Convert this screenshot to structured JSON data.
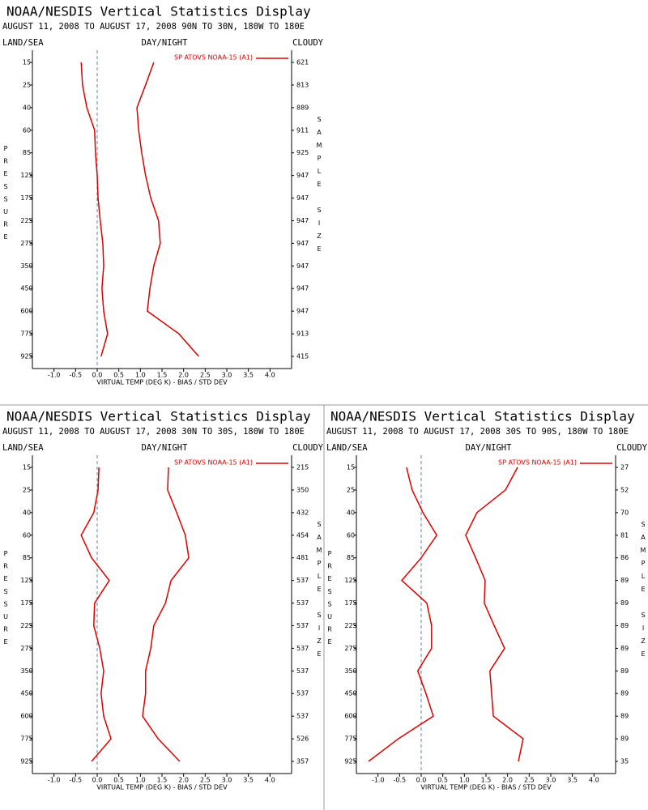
{
  "chart_data": [
    {
      "type": "line",
      "title": "NOAA/NESDIS Vertical Statistics Display",
      "subtitle": "AUGUST 11, 2008 TO AUGUST 17, 2008 90N TO 30N, 180W TO 180E",
      "header_left": "LAND/SEA",
      "header_center": "DAY/NIGHT",
      "header_right": "CLOUDY",
      "ylabel": "PRESSURE",
      "y2label": "SAMPLE SIZE",
      "xlabel": "VIRTUAL TEMP (DEG K) - BIAS / STD DEV",
      "categories": [
        15,
        25,
        40,
        60,
        85,
        125,
        175,
        225,
        275,
        350,
        450,
        600,
        775,
        925
      ],
      "sample_size": [
        621,
        813,
        889,
        911,
        925,
        947,
        947,
        947,
        947,
        947,
        947,
        947,
        913,
        415
      ],
      "series": [
        {
          "name": "SP ATOVS NOAA-15 (A1)",
          "color": "#dd0000",
          "bias": [
            -0.37,
            -0.34,
            -0.24,
            -0.06,
            -0.04,
            0.0,
            0.02,
            0.07,
            0.13,
            0.15,
            0.11,
            0.15,
            0.24,
            0.09
          ],
          "std_dev": [
            1.31,
            1.12,
            0.92,
            0.96,
            1.03,
            1.12,
            1.24,
            1.42,
            1.46,
            1.31,
            1.22,
            1.16,
            1.89,
            2.35
          ]
        }
      ],
      "xlim": [
        -1.5,
        4.5
      ],
      "xticks": [
        {
          "value": -1,
          "label": "-1.0"
        },
        {
          "value": -0.5,
          "label": "-0.5"
        },
        {
          "value": 0,
          "label": "0.0"
        },
        {
          "value": 0.5,
          "label": "0.5"
        },
        {
          "value": 1,
          "label": "1.0"
        },
        {
          "value": 1.5,
          "label": "1.5"
        },
        {
          "value": 2,
          "label": "2.0"
        },
        {
          "value": 2.5,
          "label": "2.5"
        },
        {
          "value": 3,
          "label": "3.0"
        },
        {
          "value": 3.5,
          "label": "3.5"
        },
        {
          "value": 4,
          "label": "4.0"
        }
      ]
    },
    {
      "type": "line",
      "title": "NOAA/NESDIS Vertical Statistics Display",
      "subtitle": "AUGUST 11, 2008 TO AUGUST 17, 2008 30N TO 30S, 180W TO 180E",
      "header_left": "LAND/SEA",
      "header_center": "DAY/NIGHT",
      "header_right": "CLOUDY",
      "ylabel": "PRESSURE",
      "y2label": "SAMPLE SIZE",
      "xlabel": "VIRTUAL TEMP (DEG K) - BIAS / STD DEV",
      "categories": [
        15,
        25,
        40,
        60,
        85,
        125,
        175,
        225,
        275,
        350,
        450,
        600,
        775,
        925
      ],
      "sample_size": [
        215,
        350,
        432,
        454,
        481,
        537,
        537,
        537,
        537,
        537,
        537,
        537,
        526,
        357
      ],
      "series": [
        {
          "name": "SP ATOVS NOAA-15 (A1)",
          "color": "#dd0000",
          "bias": [
            0.04,
            0.02,
            -0.08,
            -0.37,
            -0.13,
            0.28,
            -0.06,
            -0.08,
            0.06,
            0.15,
            0.09,
            0.15,
            0.32,
            -0.13
          ],
          "std_dev": [
            1.65,
            1.63,
            1.84,
            2.04,
            2.12,
            1.71,
            1.58,
            1.31,
            1.24,
            1.12,
            1.12,
            1.05,
            1.41,
            1.91
          ]
        }
      ],
      "xlim": [
        -1.5,
        4.5
      ],
      "xticks": [
        {
          "value": -1,
          "label": "-1.0"
        },
        {
          "value": -0.5,
          "label": "-0.5"
        },
        {
          "value": 0,
          "label": "0.0"
        },
        {
          "value": 0.5,
          "label": "0.5"
        },
        {
          "value": 1,
          "label": "1.0"
        },
        {
          "value": 1.5,
          "label": "1.5"
        },
        {
          "value": 2,
          "label": "2.0"
        },
        {
          "value": 2.5,
          "label": "2.5"
        },
        {
          "value": 3,
          "label": "3.0"
        },
        {
          "value": 3.5,
          "label": "3.5"
        },
        {
          "value": 4,
          "label": "4.0"
        }
      ]
    },
    {
      "type": "line",
      "title": "NOAA/NESDIS Vertical Statistics Display",
      "subtitle": "AUGUST 11, 2008 TO AUGUST 17, 2008 30S TO 90S, 180W TO 180E",
      "header_left": "LAND/SEA",
      "header_center": "DAY/NIGHT",
      "header_right": "CLOUDY",
      "ylabel": "PRESSURE",
      "y2label": "SAMPLE SIZE",
      "xlabel": "VIRTUAL TEMP (DEG K) - BIAS / STD DEV",
      "categories": [
        15,
        25,
        40,
        60,
        85,
        125,
        175,
        225,
        275,
        350,
        450,
        600,
        775,
        925
      ],
      "sample_size": [
        27,
        52,
        70,
        81,
        86,
        89,
        89,
        89,
        89,
        89,
        89,
        89,
        89,
        35
      ],
      "series": [
        {
          "name": "SP ATOVS NOAA-15 (A1)",
          "color": "#dd0000",
          "bias": [
            -0.34,
            -0.21,
            0.04,
            0.36,
            0.0,
            -0.45,
            0.13,
            0.24,
            0.24,
            -0.08,
            0.11,
            0.28,
            -0.53,
            -1.22
          ],
          "std_dev": [
            2.23,
            1.95,
            1.29,
            1.03,
            1.26,
            1.48,
            1.46,
            1.69,
            1.93,
            1.59,
            1.63,
            1.67,
            2.36,
            2.25
          ]
        }
      ],
      "xlim": [
        -1.5,
        4.5
      ],
      "xticks": [
        {
          "value": -1,
          "label": "-1.0"
        },
        {
          "value": -0.5,
          "label": "-0.5"
        },
        {
          "value": 0,
          "label": "0.0"
        },
        {
          "value": 0.5,
          "label": "0.5"
        },
        {
          "value": 1,
          "label": "1.0"
        },
        {
          "value": 1.5,
          "label": "1.5"
        },
        {
          "value": 2,
          "label": "2.0"
        },
        {
          "value": 2.5,
          "label": "2.5"
        },
        {
          "value": 3,
          "label": "3.0"
        },
        {
          "value": 3.5,
          "label": "3.5"
        },
        {
          "value": 4,
          "label": "4.0"
        }
      ]
    }
  ]
}
